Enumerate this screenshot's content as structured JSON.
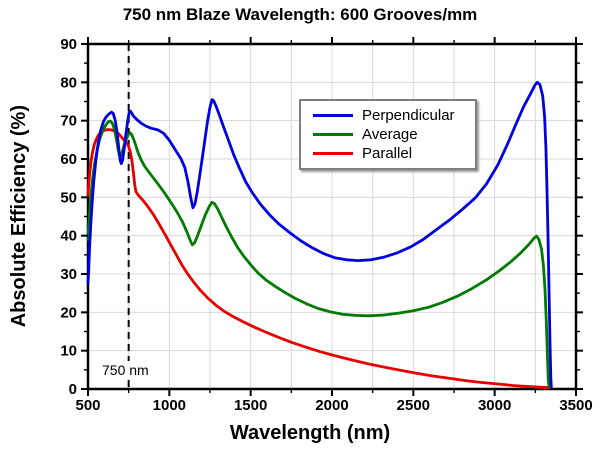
{
  "chart_data": {
    "type": "line",
    "title": "750 nm Blaze Wavelength: 600 Grooves/mm",
    "xlabel": "Wavelength (nm)",
    "ylabel": "Absolute Efficiency (%)",
    "xlim": [
      500,
      3500
    ],
    "ylim": [
      0,
      90
    ],
    "x_major_ticks": [
      500,
      1000,
      1500,
      2000,
      2500,
      3000,
      3500
    ],
    "x_minor_tick_step": 250,
    "y_major_ticks": [
      0,
      10,
      20,
      30,
      40,
      50,
      60,
      70,
      80,
      90
    ],
    "y_minor_tick_step": 5,
    "grid": {
      "visible": true,
      "x_interval": 250,
      "y_interval": 10,
      "color": "#d8d8d8"
    },
    "axis_color": "#000000",
    "legend": {
      "position": "upper-center-right",
      "border_color": "#7e7e7e"
    },
    "reference_line": {
      "x": 750,
      "style": "dashed",
      "color": "#000000",
      "label": "750 nm"
    },
    "series": [
      {
        "name": "Parallel",
        "color": "#e60000",
        "points": [
          [
            500,
            50.5
          ],
          [
            505,
            53.5
          ],
          [
            511,
            56.5
          ],
          [
            519,
            59.5
          ],
          [
            528,
            61.8
          ],
          [
            539,
            63.8
          ],
          [
            552,
            65.3
          ],
          [
            567,
            66.4
          ],
          [
            584,
            67.1
          ],
          [
            602,
            67.5
          ],
          [
            622,
            67.7
          ],
          [
            645,
            67.6
          ],
          [
            668,
            67.2
          ],
          [
            688,
            66.6
          ],
          [
            705,
            65.8
          ],
          [
            722,
            64.9
          ],
          [
            738,
            64.2
          ],
          [
            750,
            63.2
          ],
          [
            760,
            61.8
          ],
          [
            770,
            59.6
          ],
          [
            779,
            56.5
          ],
          [
            787,
            53.3
          ],
          [
            794,
            51.6
          ],
          [
            803,
            50.9
          ],
          [
            815,
            50.3
          ],
          [
            830,
            49.6
          ],
          [
            850,
            48.6
          ],
          [
            875,
            47.2
          ],
          [
            905,
            45.3
          ],
          [
            940,
            42.8
          ],
          [
            975,
            40.2
          ],
          [
            1010,
            37.5
          ],
          [
            1045,
            34.8
          ],
          [
            1080,
            32.2
          ],
          [
            1115,
            29.9
          ],
          [
            1150,
            27.9
          ],
          [
            1190,
            25.8
          ],
          [
            1235,
            23.8
          ],
          [
            1285,
            21.9
          ],
          [
            1340,
            20.2
          ],
          [
            1400,
            18.7
          ],
          [
            1465,
            17.3
          ],
          [
            1530,
            16
          ],
          [
            1600,
            14.7
          ],
          [
            1675,
            13.4
          ],
          [
            1755,
            12.1
          ],
          [
            1840,
            10.9
          ],
          [
            1930,
            9.7
          ],
          [
            2025,
            8.6
          ],
          [
            2120,
            7.6
          ],
          [
            2220,
            6.6
          ],
          [
            2320,
            5.7
          ],
          [
            2420,
            4.9
          ],
          [
            2520,
            4.1
          ],
          [
            2620,
            3.4
          ],
          [
            2720,
            2.8
          ],
          [
            2820,
            2.2
          ],
          [
            2920,
            1.7
          ],
          [
            3020,
            1.3
          ],
          [
            3120,
            0.9
          ],
          [
            3220,
            0.6
          ],
          [
            3290,
            0.45
          ],
          [
            3340,
            0.35
          ]
        ]
      },
      {
        "name": "Average",
        "color": "#007a00",
        "points": [
          [
            500,
            39
          ],
          [
            505,
            43
          ],
          [
            512,
            47.5
          ],
          [
            520,
            51.5
          ],
          [
            530,
            55.5
          ],
          [
            542,
            59
          ],
          [
            556,
            62.3
          ],
          [
            572,
            65.2
          ],
          [
            590,
            67.3
          ],
          [
            608,
            68.8
          ],
          [
            625,
            69.7
          ],
          [
            638,
            69.9
          ],
          [
            650,
            69.3
          ],
          [
            662,
            67.8
          ],
          [
            674,
            65.3
          ],
          [
            685,
            62.5
          ],
          [
            693,
            61
          ],
          [
            700,
            60.8
          ],
          [
            710,
            61.8
          ],
          [
            722,
            63.6
          ],
          [
            736,
            65.3
          ],
          [
            748,
            66.4
          ],
          [
            760,
            66.8
          ],
          [
            772,
            66.1
          ],
          [
            788,
            64.3
          ],
          [
            805,
            62
          ],
          [
            825,
            59.9
          ],
          [
            850,
            58
          ],
          [
            885,
            56
          ],
          [
            925,
            53.8
          ],
          [
            965,
            51.5
          ],
          [
            1005,
            49
          ],
          [
            1045,
            46.3
          ],
          [
            1080,
            43.7
          ],
          [
            1110,
            40.8
          ],
          [
            1130,
            38.6
          ],
          [
            1142,
            37.6
          ],
          [
            1155,
            38.1
          ],
          [
            1172,
            39.8
          ],
          [
            1195,
            42.5
          ],
          [
            1220,
            45.3
          ],
          [
            1245,
            47.6
          ],
          [
            1262,
            48.7
          ],
          [
            1278,
            48.3
          ],
          [
            1298,
            46.9
          ],
          [
            1322,
            44.8
          ],
          [
            1350,
            42.3
          ],
          [
            1385,
            39.5
          ],
          [
            1420,
            36.9
          ],
          [
            1460,
            34.5
          ],
          [
            1500,
            32.4
          ],
          [
            1545,
            30.3
          ],
          [
            1595,
            28.4
          ],
          [
            1650,
            26.8
          ],
          [
            1710,
            25.2
          ],
          [
            1775,
            23.6
          ],
          [
            1845,
            22.2
          ],
          [
            1915,
            21
          ],
          [
            1990,
            20.1
          ],
          [
            2065,
            19.5
          ],
          [
            2145,
            19.2
          ],
          [
            2230,
            19.1
          ],
          [
            2320,
            19.3
          ],
          [
            2410,
            19.8
          ],
          [
            2500,
            20.4
          ],
          [
            2590,
            21.3
          ],
          [
            2680,
            22.6
          ],
          [
            2770,
            24.2
          ],
          [
            2860,
            26.2
          ],
          [
            2950,
            28.5
          ],
          [
            3030,
            30.9
          ],
          [
            3100,
            33.2
          ],
          [
            3160,
            35.5
          ],
          [
            3210,
            37.7
          ],
          [
            3245,
            39.5
          ],
          [
            3258,
            39.9
          ],
          [
            3272,
            39
          ],
          [
            3288,
            36.5
          ],
          [
            3300,
            32
          ],
          [
            3310,
            25.5
          ],
          [
            3318,
            17
          ],
          [
            3325,
            8
          ],
          [
            3330,
            2.5
          ],
          [
            3334,
            0.4
          ]
        ]
      },
      {
        "name": "Perpendicular",
        "color": "#0000e0",
        "points": [
          [
            500,
            27.5
          ],
          [
            504,
            31
          ],
          [
            510,
            37
          ],
          [
            517,
            43
          ],
          [
            525,
            48.5
          ],
          [
            535,
            54
          ],
          [
            548,
            59.5
          ],
          [
            562,
            64
          ],
          [
            578,
            67.5
          ],
          [
            595,
            69.8
          ],
          [
            612,
            71
          ],
          [
            630,
            71.8
          ],
          [
            645,
            72.2
          ],
          [
            655,
            71.9
          ],
          [
            668,
            70
          ],
          [
            680,
            66.5
          ],
          [
            690,
            62.5
          ],
          [
            698,
            59.6
          ],
          [
            705,
            58.8
          ],
          [
            712,
            59.6
          ],
          [
            722,
            62.5
          ],
          [
            733,
            66.5
          ],
          [
            744,
            70
          ],
          [
            753,
            72.2
          ],
          [
            760,
            72.5
          ],
          [
            768,
            72
          ],
          [
            780,
            71.2
          ],
          [
            800,
            70.3
          ],
          [
            825,
            69.4
          ],
          [
            855,
            68.6
          ],
          [
            890,
            68
          ],
          [
            930,
            67.6
          ],
          [
            965,
            66.7
          ],
          [
            1000,
            64.9
          ],
          [
            1040,
            62.2
          ],
          [
            1070,
            60.2
          ],
          [
            1095,
            57.8
          ],
          [
            1115,
            54
          ],
          [
            1132,
            49.8
          ],
          [
            1145,
            47.3
          ],
          [
            1158,
            48.3
          ],
          [
            1172,
            51.5
          ],
          [
            1190,
            56.5
          ],
          [
            1212,
            63
          ],
          [
            1235,
            70
          ],
          [
            1250,
            73.5
          ],
          [
            1262,
            75.5
          ],
          [
            1272,
            75.2
          ],
          [
            1285,
            74
          ],
          [
            1305,
            71.8
          ],
          [
            1330,
            68.8
          ],
          [
            1360,
            65.3
          ],
          [
            1395,
            61.2
          ],
          [
            1430,
            57.7
          ],
          [
            1470,
            54
          ],
          [
            1510,
            51.2
          ],
          [
            1560,
            48.2
          ],
          [
            1615,
            45.5
          ],
          [
            1675,
            43
          ],
          [
            1740,
            40.8
          ],
          [
            1810,
            38.6
          ],
          [
            1880,
            36.8
          ],
          [
            1950,
            35.3
          ],
          [
            2020,
            34.2
          ],
          [
            2090,
            33.7
          ],
          [
            2160,
            33.5
          ],
          [
            2240,
            33.7
          ],
          [
            2320,
            34.4
          ],
          [
            2400,
            35.5
          ],
          [
            2480,
            37
          ],
          [
            2560,
            39
          ],
          [
            2640,
            41.5
          ],
          [
            2720,
            44
          ],
          [
            2800,
            46.8
          ],
          [
            2880,
            49.8
          ],
          [
            2950,
            53.5
          ],
          [
            3020,
            58.5
          ],
          [
            3080,
            64
          ],
          [
            3130,
            69
          ],
          [
            3180,
            73.8
          ],
          [
            3220,
            77
          ],
          [
            3248,
            79.3
          ],
          [
            3262,
            80
          ],
          [
            3278,
            79.4
          ],
          [
            3295,
            76.5
          ],
          [
            3307,
            71
          ],
          [
            3315,
            63
          ],
          [
            3322,
            52
          ],
          [
            3328,
            40
          ],
          [
            3334,
            26
          ],
          [
            3340,
            12
          ],
          [
            3345,
            3
          ],
          [
            3348,
            0.5
          ]
        ]
      }
    ],
    "legend_order": [
      2,
      1,
      0
    ]
  }
}
